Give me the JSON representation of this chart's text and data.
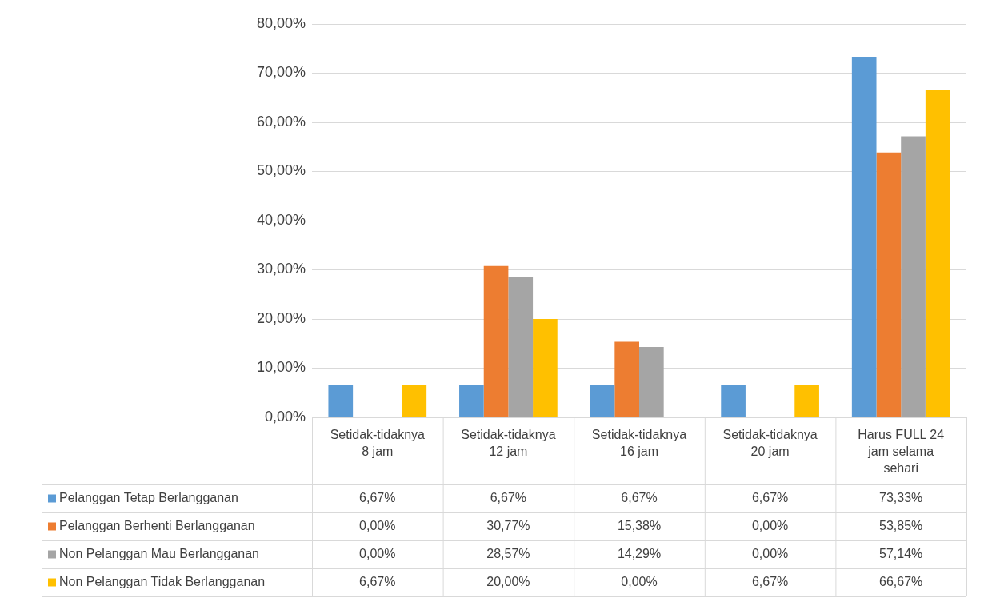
{
  "chart_data": {
    "type": "bar",
    "categories": [
      "Setidak-tidaknya 8 jam",
      "Setidak-tidaknya 12 jam",
      "Setidak-tidaknya 16 jam",
      "Setidak-tidaknya 20 jam",
      "Harus FULL 24 jam selama sehari"
    ],
    "series": [
      {
        "name": "Pelanggan Tetap Berlangganan",
        "color": "#5b9bd5",
        "values": [
          6.67,
          6.67,
          6.67,
          6.67,
          73.33
        ],
        "value_labels": [
          "6,67%",
          "6,67%",
          "6,67%",
          "6,67%",
          "73,33%"
        ]
      },
      {
        "name": "Pelanggan Berhenti Berlangganan",
        "color": "#ed7d31",
        "values": [
          0,
          30.77,
          15.38,
          0,
          53.85
        ],
        "value_labels": [
          "0,00%",
          "30,77%",
          "15,38%",
          "0,00%",
          "53,85%"
        ]
      },
      {
        "name": "Non Pelanggan Mau Berlangganan",
        "color": "#a5a5a5",
        "values": [
          0,
          28.57,
          14.29,
          0,
          57.14
        ],
        "value_labels": [
          "0,00%",
          "28,57%",
          "14,29%",
          "0,00%",
          "57,14%"
        ]
      },
      {
        "name": "Non Pelanggan Tidak Berlangganan",
        "color": "#ffc000",
        "values": [
          6.67,
          20,
          0,
          6.67,
          66.67
        ],
        "value_labels": [
          "6,67%",
          "20,00%",
          "0,00%",
          "6,67%",
          "66,67%"
        ]
      }
    ],
    "ylim": [
      0,
      80
    ],
    "yticks": [
      {
        "value": 0,
        "label": "0,00%"
      },
      {
        "value": 10,
        "label": "10,00%"
      },
      {
        "value": 20,
        "label": "20,00%"
      },
      {
        "value": 30,
        "label": "30,00%"
      },
      {
        "value": 40,
        "label": "40,00%"
      },
      {
        "value": 50,
        "label": "50,00%"
      },
      {
        "value": 60,
        "label": "60,00%"
      },
      {
        "value": 70,
        "label": "70,00%"
      },
      {
        "value": 80,
        "label": "80,00%"
      }
    ],
    "grid": "y",
    "legend": "bottom left"
  }
}
